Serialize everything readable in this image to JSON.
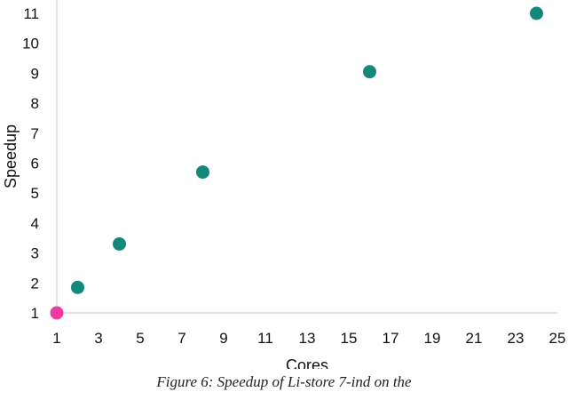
{
  "chart_data": {
    "type": "scatter",
    "xlabel": "Cores",
    "ylabel": "Speedup",
    "xlim": [
      1,
      25
    ],
    "ylim": [
      1,
      11
    ],
    "x_ticks": [
      "1",
      "3",
      "5",
      "7",
      "9",
      "11",
      "13",
      "15",
      "17",
      "19",
      "21",
      "23",
      "25"
    ],
    "y_ticks": [
      "1",
      "2",
      "3",
      "4",
      "5",
      "6",
      "7",
      "8",
      "9",
      "10",
      "11"
    ],
    "grid": false,
    "series": [
      {
        "color": "#12897a",
        "points": [
          {
            "x": 2,
            "y": 1.85
          },
          {
            "x": 4,
            "y": 3.3
          },
          {
            "x": 8,
            "y": 5.7
          },
          {
            "x": 16,
            "y": 9.05
          },
          {
            "x": 24,
            "y": 11.0
          }
        ]
      },
      {
        "color": "#f03aa0",
        "points": [
          {
            "x": 1,
            "y": 1.0
          }
        ]
      }
    ]
  },
  "caption": "Figure 6:  Speedup of Li-store 7-ind on the"
}
